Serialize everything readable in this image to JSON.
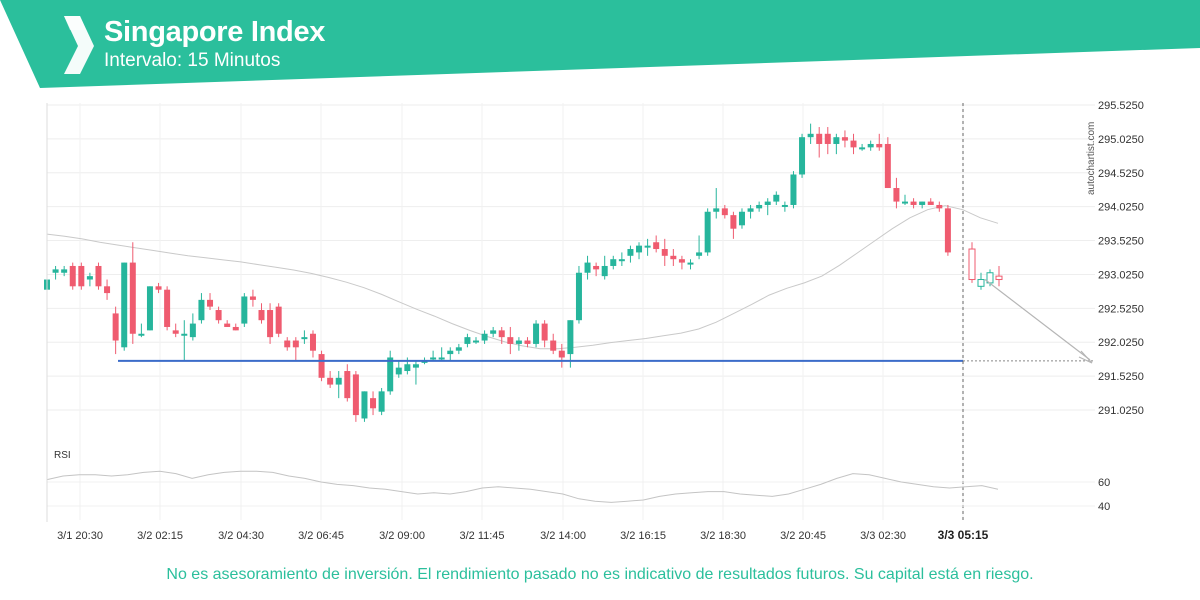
{
  "header": {
    "title": "Singapore Index",
    "subtitle": "Intervalo: 15 Minutos",
    "brand_color": "#2bbf9c"
  },
  "disclaimer": "No es asesoramiento de inversión. El rendimiento pasado no es indicativo de resultados futuros. Su capital está en riesgo.",
  "watermark": "autochartist.com",
  "chart_data": {
    "type": "candlestick",
    "price_axis": {
      "ticks": [
        "295.5250",
        "295.0250",
        "294.5250",
        "294.0250",
        "293.5250",
        "293.0250",
        "292.5250",
        "292.0250",
        "291.5250",
        "291.0250"
      ],
      "range": [
        290.6,
        295.6
      ],
      "position": "right"
    },
    "time_axis": {
      "ticks": [
        "3/1 20:30",
        "3/2 02:15",
        "3/2 04:30",
        "3/2 06:45",
        "3/2 09:00",
        "3/2 11:45",
        "3/2 14:00",
        "3/2 16:15",
        "3/2 18:30",
        "3/2 20:45",
        "3/3 02:30",
        "3/3 05:15"
      ],
      "highlighted_tick": "3/3 05:15"
    },
    "up_color": "#26b59c",
    "down_color": "#ef5b6f",
    "candles_ohlc": [
      [
        292.8,
        292.95,
        292.6,
        292.95
      ],
      [
        293.05,
        293.15,
        292.95,
        293.1
      ],
      [
        293.05,
        293.15,
        293.0,
        293.1
      ],
      [
        293.15,
        293.2,
        292.8,
        292.85
      ],
      [
        293.15,
        293.2,
        292.8,
        292.85
      ],
      [
        292.95,
        293.05,
        292.85,
        293.0
      ],
      [
        293.15,
        293.2,
        292.8,
        292.85
      ],
      [
        292.85,
        292.95,
        292.65,
        292.75
      ],
      [
        292.45,
        292.55,
        291.85,
        292.05
      ],
      [
        291.95,
        293.2,
        291.9,
        293.2
      ],
      [
        293.2,
        293.5,
        292.0,
        292.15
      ],
      [
        292.15,
        292.3,
        292.1,
        292.15
      ],
      [
        292.2,
        292.85,
        292.2,
        292.85
      ],
      [
        292.85,
        292.9,
        292.75,
        292.8
      ],
      [
        292.8,
        292.85,
        292.2,
        292.25
      ],
      [
        292.2,
        292.3,
        292.1,
        292.15
      ],
      [
        292.15,
        292.35,
        291.75,
        292.15
      ],
      [
        292.1,
        292.45,
        292.05,
        292.3
      ],
      [
        292.35,
        292.75,
        292.3,
        292.65
      ],
      [
        292.65,
        292.75,
        292.5,
        292.55
      ],
      [
        292.5,
        292.55,
        292.3,
        292.35
      ],
      [
        292.3,
        292.35,
        292.25,
        292.25
      ],
      [
        292.25,
        292.3,
        292.2,
        292.2
      ],
      [
        292.3,
        292.75,
        292.25,
        292.7
      ],
      [
        292.7,
        292.8,
        292.55,
        292.65
      ],
      [
        292.5,
        292.6,
        292.3,
        292.35
      ],
      [
        292.5,
        292.6,
        292.0,
        292.1
      ],
      [
        292.55,
        292.6,
        292.1,
        292.15
      ],
      [
        292.05,
        292.1,
        291.9,
        291.95
      ],
      [
        292.05,
        292.1,
        291.75,
        291.95
      ],
      [
        292.1,
        292.2,
        292.0,
        292.1
      ],
      [
        292.15,
        292.2,
        291.8,
        291.9
      ],
      [
        291.85,
        291.9,
        291.45,
        291.5
      ],
      [
        291.5,
        291.6,
        291.35,
        291.4
      ],
      [
        291.4,
        291.6,
        291.2,
        291.5
      ],
      [
        291.6,
        291.7,
        291.15,
        291.2
      ],
      [
        291.55,
        291.6,
        290.85,
        290.95
      ],
      [
        290.9,
        291.3,
        290.85,
        291.3
      ],
      [
        291.2,
        291.3,
        290.95,
        291.05
      ],
      [
        291.0,
        291.35,
        290.95,
        291.3
      ],
      [
        291.3,
        291.9,
        291.25,
        291.8
      ],
      [
        291.55,
        291.75,
        291.5,
        291.65
      ],
      [
        291.6,
        291.8,
        291.55,
        291.7
      ],
      [
        291.65,
        291.75,
        291.4,
        291.7
      ],
      [
        291.75,
        291.8,
        291.7,
        291.75
      ],
      [
        291.8,
        291.9,
        291.75,
        291.8
      ],
      [
        291.8,
        291.95,
        291.75,
        291.8
      ],
      [
        291.85,
        291.95,
        291.75,
        291.9
      ],
      [
        291.9,
        292.0,
        291.85,
        291.95
      ],
      [
        292.0,
        292.15,
        291.95,
        292.1
      ],
      [
        292.05,
        292.1,
        292.0,
        292.05
      ],
      [
        292.05,
        292.2,
        292.0,
        292.15
      ],
      [
        292.15,
        292.25,
        292.1,
        292.2
      ],
      [
        292.2,
        292.25,
        292.0,
        292.1
      ],
      [
        292.1,
        292.25,
        291.85,
        292.0
      ],
      [
        292.0,
        292.1,
        291.9,
        292.05
      ],
      [
        292.05,
        292.1,
        291.95,
        292.0
      ],
      [
        292.0,
        292.35,
        291.95,
        292.3
      ],
      [
        292.3,
        292.35,
        291.95,
        292.05
      ],
      [
        292.05,
        292.15,
        291.85,
        291.9
      ],
      [
        291.9,
        292.0,
        291.65,
        291.8
      ],
      [
        291.85,
        292.35,
        291.65,
        292.35
      ],
      [
        292.35,
        293.15,
        292.3,
        293.05
      ],
      [
        293.05,
        293.3,
        292.95,
        293.2
      ],
      [
        293.15,
        293.2,
        293.0,
        293.1
      ],
      [
        293.0,
        293.3,
        292.95,
        293.15
      ],
      [
        293.15,
        293.3,
        293.1,
        293.25
      ],
      [
        293.25,
        293.35,
        293.15,
        293.25
      ],
      [
        293.3,
        293.45,
        293.2,
        293.4
      ],
      [
        293.35,
        293.5,
        293.25,
        293.45
      ],
      [
        293.45,
        293.55,
        293.3,
        293.45
      ],
      [
        293.5,
        293.6,
        293.35,
        293.4
      ],
      [
        293.4,
        293.55,
        293.15,
        293.3
      ],
      [
        293.3,
        293.4,
        293.15,
        293.25
      ],
      [
        293.25,
        293.3,
        293.1,
        293.2
      ],
      [
        293.2,
        293.25,
        293.1,
        293.2
      ],
      [
        293.3,
        293.6,
        293.25,
        293.35
      ],
      [
        293.35,
        294.0,
        293.3,
        293.95
      ],
      [
        293.95,
        294.3,
        293.85,
        294.0
      ],
      [
        294.0,
        294.05,
        293.85,
        293.9
      ],
      [
        293.9,
        293.95,
        293.55,
        293.7
      ],
      [
        293.75,
        294.0,
        293.7,
        293.95
      ],
      [
        293.95,
        294.05,
        293.85,
        294.0
      ],
      [
        294.0,
        294.1,
        293.95,
        294.05
      ],
      [
        294.05,
        294.15,
        293.9,
        294.1
      ],
      [
        294.1,
        294.25,
        294.05,
        294.2
      ],
      [
        294.05,
        294.1,
        293.95,
        294.05
      ],
      [
        294.05,
        294.55,
        294.0,
        294.5
      ],
      [
        294.5,
        295.1,
        294.45,
        295.05
      ],
      [
        295.05,
        295.25,
        294.95,
        295.1
      ],
      [
        295.1,
        295.2,
        294.75,
        294.95
      ],
      [
        295.1,
        295.2,
        294.8,
        294.95
      ],
      [
        294.95,
        295.1,
        294.8,
        295.05
      ],
      [
        295.05,
        295.15,
        294.9,
        295.0
      ],
      [
        295.0,
        295.1,
        294.8,
        294.9
      ],
      [
        294.9,
        294.95,
        294.85,
        294.9
      ],
      [
        294.9,
        295.0,
        294.85,
        294.95
      ],
      [
        294.95,
        295.1,
        294.85,
        294.9
      ],
      [
        294.95,
        295.05,
        294.3,
        294.3
      ],
      [
        294.3,
        294.45,
        294.0,
        294.1
      ],
      [
        294.1,
        294.2,
        294.05,
        294.1
      ],
      [
        294.1,
        294.15,
        294.0,
        294.05
      ],
      [
        294.05,
        294.1,
        294.0,
        294.1
      ],
      [
        294.1,
        294.15,
        294.05,
        294.05
      ],
      [
        294.05,
        294.1,
        293.95,
        294.0
      ],
      [
        294.0,
        294.05,
        293.3,
        293.35
      ]
    ],
    "forecast_candles_ohlc": [
      [
        293.4,
        293.5,
        292.9,
        292.95
      ],
      [
        292.85,
        293.05,
        292.8,
        292.95
      ],
      [
        292.9,
        293.1,
        292.85,
        293.05
      ],
      [
        293.0,
        293.15,
        292.85,
        292.95
      ]
    ],
    "moving_average": [
      293.62,
      293.59,
      293.55,
      293.5,
      293.46,
      293.42,
      293.38,
      293.34,
      293.3,
      293.27,
      293.24,
      293.21,
      293.17,
      293.13,
      293.09,
      293.04,
      292.98,
      292.91,
      292.83,
      292.73,
      292.62,
      292.51,
      292.41,
      292.3,
      292.2,
      292.11,
      292.03,
      291.97,
      291.93,
      291.93,
      291.95,
      291.98,
      292.02,
      292.05,
      292.08,
      292.12,
      292.16,
      292.22,
      292.32,
      292.45,
      292.58,
      292.72,
      292.82,
      292.9,
      293.0,
      293.16,
      293.34,
      293.52,
      293.7,
      293.86,
      293.98,
      294.04,
      293.98,
      293.86,
      293.78
    ],
    "support_level": 291.75,
    "support_color": "#3b6cc9",
    "projection_target": 291.73,
    "rsi": {
      "label": "RSI",
      "ticks": [
        "60",
        "40"
      ],
      "range": [
        30,
        80
      ],
      "values": [
        62,
        65,
        66,
        66,
        65,
        66,
        68,
        69,
        67,
        63,
        66,
        68,
        69,
        69,
        68,
        65,
        63,
        60,
        58,
        57,
        55,
        54,
        52,
        50,
        51,
        50,
        52,
        55,
        56,
        55,
        54,
        52,
        50,
        46,
        44,
        43,
        44,
        45,
        48,
        50,
        51,
        52,
        52,
        50,
        49,
        48,
        50,
        54,
        58,
        63,
        67,
        66,
        63,
        60,
        58,
        56,
        55,
        56,
        57,
        54
      ]
    }
  }
}
